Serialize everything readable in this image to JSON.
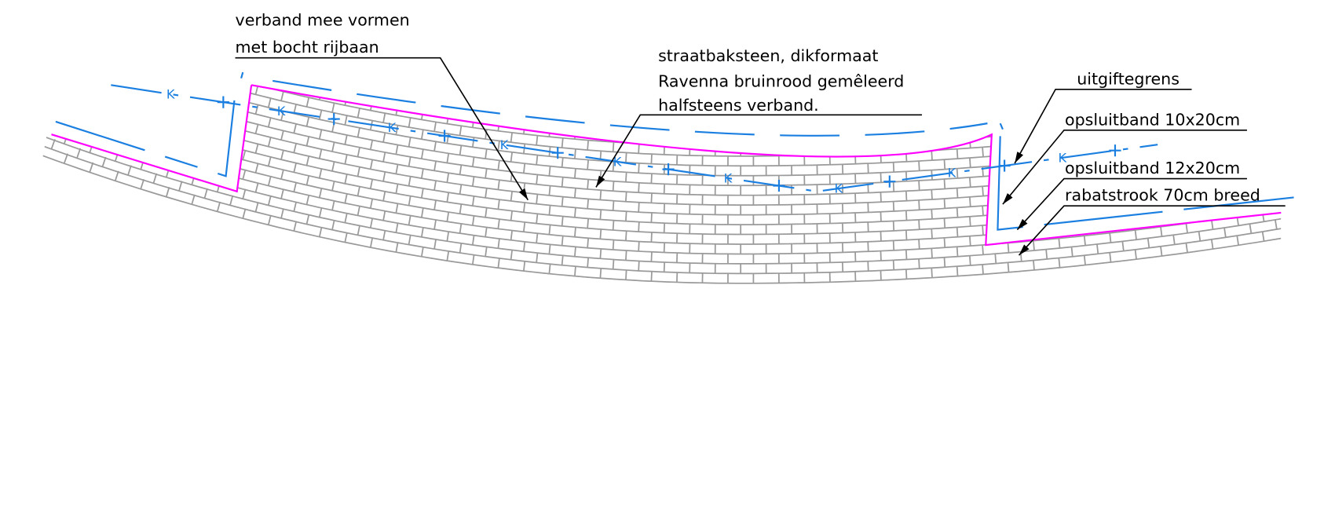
{
  "labels": {
    "verband": [
      "verband mee vormen",
      "met bocht rijbaan"
    ],
    "straatbaksteen": [
      "straatbaksteen, dikformaat",
      "Ravenna bruinrood gemêleerd",
      "halfsteens verband."
    ],
    "uitgiftegrens": "uitgiftegrens",
    "opsluitband_1": "opsluitband 10x20cm",
    "opsluitband_2": "opsluitband 12x20cm",
    "rabatstrook": "rabatstrook 70cm breed"
  },
  "line_marker": "K"
}
